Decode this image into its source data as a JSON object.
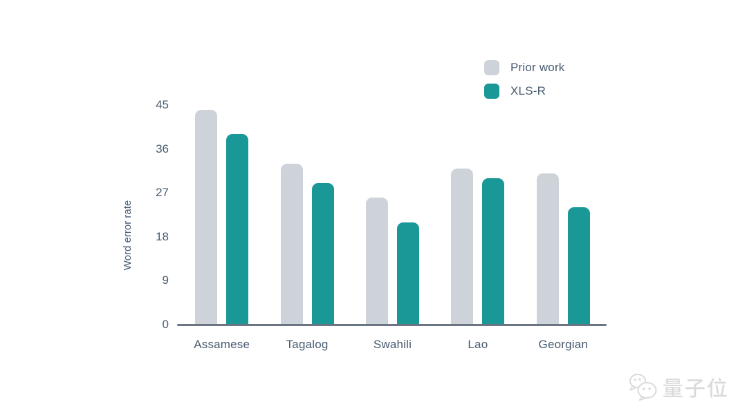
{
  "chart_data": {
    "type": "bar",
    "title": "",
    "categories": [
      "Assamese",
      "Tagalog",
      "Swahili",
      "Lao",
      "Georgian"
    ],
    "series": [
      {
        "name": "Prior work",
        "color": "#cdd3d9",
        "values": [
          44,
          33,
          26,
          32,
          31
        ]
      },
      {
        "name": "XLS-R",
        "color": "#1a9898",
        "values": [
          39,
          29,
          21,
          30,
          24
        ]
      }
    ],
    "xlabel": "",
    "ylabel": "Word error rate",
    "ylim": [
      0,
      45
    ],
    "yticks": [
      0,
      9,
      18,
      27,
      36,
      45
    ],
    "grid": false,
    "legend_position": "top-right"
  },
  "colors": {
    "text": "#475a70",
    "axis_line": "#6b7584",
    "background": "#ffffff",
    "watermark": "#d9d9d9"
  },
  "watermark": {
    "icon": "wechat-icon",
    "text": "量子位"
  }
}
